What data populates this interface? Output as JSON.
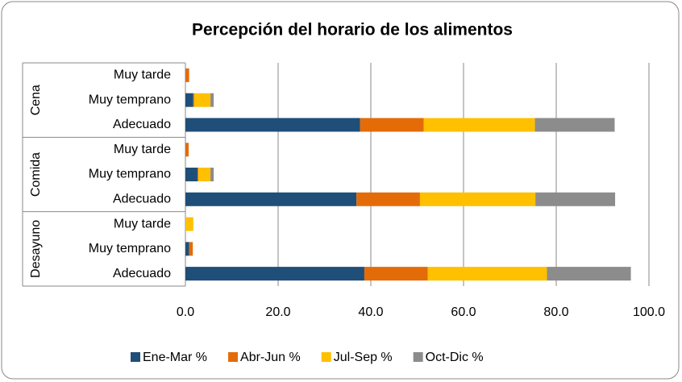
{
  "chart_data": {
    "type": "bar",
    "orientation": "horizontal",
    "stacked": true,
    "title": "Percepción del horario de los alimentos",
    "groups": [
      "Cena",
      "Comida",
      "Desayuno"
    ],
    "categories": [
      "Muy tarde",
      "Muy temprano",
      "Adecuado",
      "Muy tarde",
      "Muy temprano",
      "Adecuado",
      "Muy tarde",
      "Muy temprano",
      "Adecuado"
    ],
    "series": [
      {
        "name": "Ene-Mar %",
        "color": "#1f4e79",
        "values": [
          0,
          1.7,
          37.7,
          0,
          2.6,
          36.9,
          0,
          0.8,
          38.6
        ]
      },
      {
        "name": "Abr-Jun %",
        "color": "#e36c09",
        "values": [
          0.8,
          0.2,
          13.7,
          0.7,
          0.2,
          13.7,
          0,
          0.8,
          13.7
        ]
      },
      {
        "name": "Jul-Sep %",
        "color": "#ffc000",
        "values": [
          0,
          3.5,
          24,
          0,
          2.6,
          24.9,
          1.7,
          0,
          25.7
        ]
      },
      {
        "name": "Oct-Dic %",
        "color": "#8c8c8c",
        "values": [
          0,
          0.7,
          17.2,
          0,
          0.7,
          17.2,
          0,
          0,
          18.1
        ]
      }
    ],
    "xlim": [
      0,
      100
    ],
    "xticks": [
      {
        "value": 0,
        "label": "0.0"
      },
      {
        "value": 20,
        "label": "20.0"
      },
      {
        "value": 40,
        "label": "40.0"
      },
      {
        "value": 60,
        "label": "60.0"
      },
      {
        "value": 80,
        "label": "80.0"
      },
      {
        "value": 100,
        "label": "100.0"
      }
    ],
    "grid": true,
    "legend": "bottom"
  }
}
